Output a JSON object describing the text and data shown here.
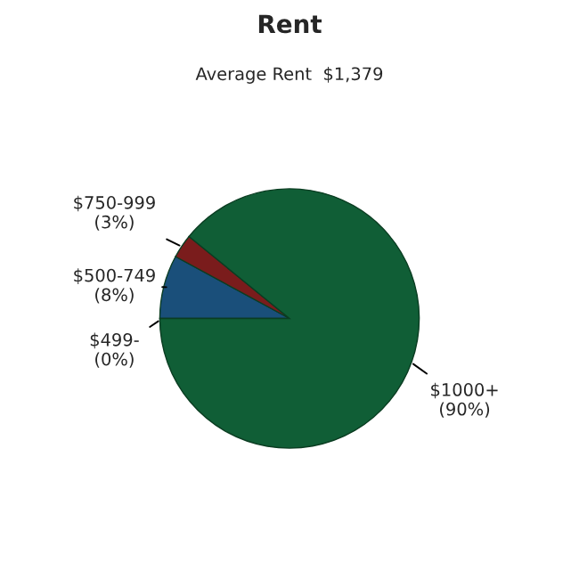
{
  "chart_data": {
    "type": "pie",
    "title": "Rent",
    "subtitle": "Average Rent  $1,379",
    "categories": [
      "$499-",
      "$500-749",
      "$750-999",
      "$1000+"
    ],
    "values": [
      0,
      8,
      3,
      90
    ],
    "value_labels": [
      "(0%)",
      "(8%)",
      "(3%)",
      "(90%)"
    ],
    "colors": [
      "#2f7a4f",
      "#1a4f7a",
      "#7a1c1c",
      "#105e36"
    ]
  }
}
